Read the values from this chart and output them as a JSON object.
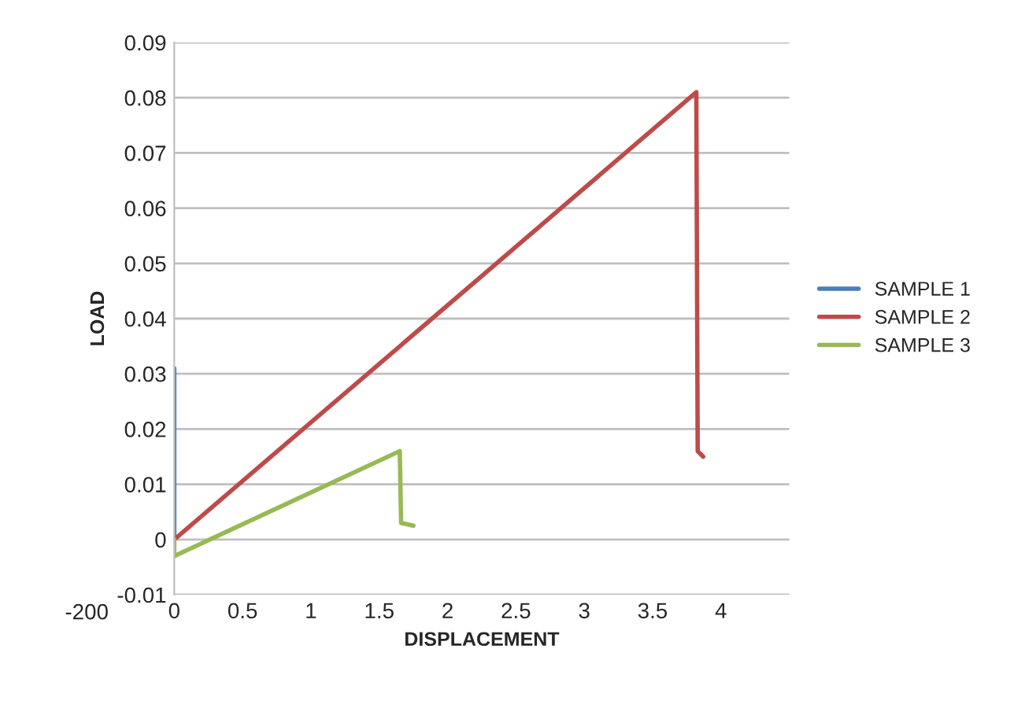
{
  "chart_data": {
    "type": "line",
    "xlabel": "DISPLACEMENT",
    "ylabel": "LOAD",
    "xlim": [
      0,
      4.5
    ],
    "xticks": [
      0,
      0.5,
      1,
      1.5,
      2,
      2.5,
      3,
      3.5,
      4
    ],
    "ylim": [
      -0.01,
      0.09
    ],
    "yticks": [
      -0.01,
      0,
      0.01,
      0.02,
      0.03,
      0.04,
      0.05,
      0.06,
      0.07,
      0.08,
      0.09
    ],
    "grid": "y",
    "legend": "right",
    "marker": "none",
    "line_style": "solid",
    "annotations": [
      "-200"
    ],
    "series": [
      {
        "name": "SAMPLE 1",
        "color": "#4a7ebb",
        "x": [
          0,
          0
        ],
        "values": [
          0,
          0.031
        ]
      },
      {
        "name": "SAMPLE 2",
        "color": "#be4b48",
        "x": [
          0,
          3.82,
          3.83,
          3.87
        ],
        "values": [
          0,
          0.081,
          0.016,
          0.015
        ]
      },
      {
        "name": "SAMPLE 3",
        "color": "#98b954",
        "x": [
          0,
          0,
          1.65,
          1.66,
          1.75
        ],
        "values": [
          0,
          -0.003,
          0.016,
          0.003,
          0.0025
        ]
      }
    ]
  }
}
